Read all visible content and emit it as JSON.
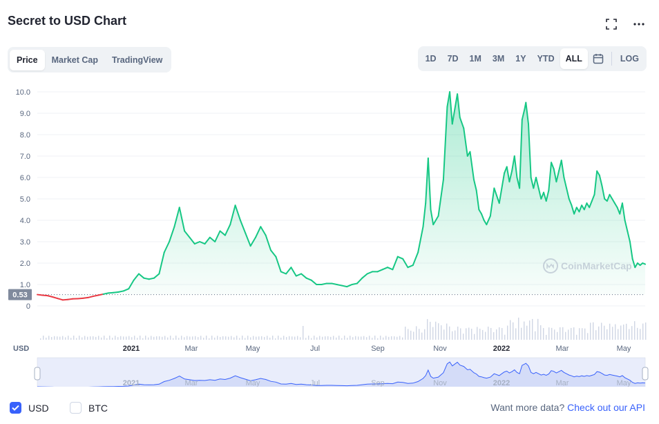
{
  "header": {
    "title": "Secret to USD Chart"
  },
  "tabs_left": [
    "Price",
    "Market Cap",
    "TradingView"
  ],
  "tabs_left_active": "Price",
  "ranges": [
    "1D",
    "7D",
    "1M",
    "3M",
    "1Y",
    "YTD",
    "ALL"
  ],
  "range_active": "ALL",
  "log_label": "LOG",
  "icons": {
    "fullscreen": "fullscreen-icon",
    "more": "more-dots-icon",
    "calendar": "calendar-icon"
  },
  "colors": {
    "up": "#16c784",
    "down": "#ea3943",
    "navigator": "#3861fb",
    "accent": "#3861fb"
  },
  "footer": {
    "usd_label": "USD",
    "btc_label": "BTC",
    "usd_checked": true,
    "btc_checked": false,
    "more_text": "Want more data?",
    "more_link": "Check out our API"
  },
  "chart_data": {
    "type": "area",
    "title": "Secret to USD Chart",
    "ylabel": "USD",
    "ylim": [
      0,
      10
    ],
    "y_ticks": [
      "10.0",
      "9.0",
      "8.0",
      "7.0",
      "6.0",
      "5.0",
      "4.0",
      "3.0",
      "2.0",
      "1.0",
      "0"
    ],
    "x_ticks": [
      "2021",
      "Mar",
      "May",
      "Jul",
      "Sep",
      "Nov",
      "2022",
      "Mar",
      "May"
    ],
    "bold_x_ticks": [
      "2021",
      "2022"
    ],
    "reference_line": {
      "value": 0.53,
      "label": "0.53"
    },
    "watermark": "CoinMarketCap",
    "series": [
      {
        "values": [
          [
            0,
            0.53
          ],
          [
            4,
            0.5
          ],
          [
            8,
            0.48
          ],
          [
            12,
            0.42
          ],
          [
            16,
            0.35
          ],
          [
            20,
            0.28
          ],
          [
            24,
            0.3
          ],
          [
            28,
            0.33
          ],
          [
            32,
            0.34
          ],
          [
            36,
            0.36
          ],
          [
            40,
            0.39
          ],
          [
            44,
            0.45
          ],
          [
            48,
            0.5
          ],
          [
            52,
            0.55
          ],
          [
            56,
            0.6
          ],
          [
            60,
            0.62
          ],
          [
            64,
            0.65
          ],
          [
            68,
            0.7
          ],
          [
            72,
            0.8
          ],
          [
            76,
            1.2
          ],
          [
            80,
            1.5
          ],
          [
            84,
            1.3
          ],
          [
            88,
            1.25
          ],
          [
            92,
            1.3
          ],
          [
            96,
            1.5
          ],
          [
            100,
            2.5
          ],
          [
            104,
            3.0
          ],
          [
            108,
            3.7
          ],
          [
            112,
            4.6
          ],
          [
            116,
            3.5
          ],
          [
            120,
            3.2
          ],
          [
            124,
            2.9
          ],
          [
            128,
            3.0
          ],
          [
            132,
            2.9
          ],
          [
            136,
            3.2
          ],
          [
            140,
            3.0
          ],
          [
            144,
            3.5
          ],
          [
            148,
            3.3
          ],
          [
            152,
            3.8
          ],
          [
            156,
            4.7
          ],
          [
            160,
            4.0
          ],
          [
            164,
            3.4
          ],
          [
            168,
            2.8
          ],
          [
            172,
            3.2
          ],
          [
            176,
            3.7
          ],
          [
            180,
            3.3
          ],
          [
            184,
            2.6
          ],
          [
            188,
            2.3
          ],
          [
            192,
            1.6
          ],
          [
            196,
            1.5
          ],
          [
            200,
            1.8
          ],
          [
            204,
            1.4
          ],
          [
            208,
            1.5
          ],
          [
            212,
            1.3
          ],
          [
            216,
            1.2
          ],
          [
            220,
            1.0
          ],
          [
            224,
            1.0
          ],
          [
            228,
            1.05
          ],
          [
            232,
            1.05
          ],
          [
            236,
            1.0
          ],
          [
            240,
            0.95
          ],
          [
            244,
            0.9
          ],
          [
            248,
            1.0
          ],
          [
            252,
            1.05
          ],
          [
            256,
            1.3
          ],
          [
            260,
            1.5
          ],
          [
            264,
            1.6
          ],
          [
            268,
            1.6
          ],
          [
            272,
            1.7
          ],
          [
            276,
            1.8
          ],
          [
            280,
            1.7
          ],
          [
            284,
            2.3
          ],
          [
            288,
            2.2
          ],
          [
            292,
            1.8
          ],
          [
            296,
            1.9
          ],
          [
            300,
            2.5
          ],
          [
            304,
            3.7
          ],
          [
            306,
            4.8
          ],
          [
            308,
            6.9
          ],
          [
            310,
            4.5
          ],
          [
            312,
            3.8
          ],
          [
            316,
            4.2
          ],
          [
            320,
            5.9
          ],
          [
            323,
            9.3
          ],
          [
            325,
            10.0
          ],
          [
            327,
            8.5
          ],
          [
            329,
            9.2
          ],
          [
            331,
            9.9
          ],
          [
            333,
            8.8
          ],
          [
            336,
            8.3
          ],
          [
            339,
            7.0
          ],
          [
            341,
            7.2
          ],
          [
            344,
            5.9
          ],
          [
            346,
            5.4
          ],
          [
            348,
            4.5
          ],
          [
            350,
            4.3
          ],
          [
            352,
            4.0
          ],
          [
            354,
            3.8
          ],
          [
            357,
            4.2
          ],
          [
            360,
            5.5
          ],
          [
            364,
            4.8
          ],
          [
            366,
            5.5
          ],
          [
            368,
            6.2
          ],
          [
            370,
            6.5
          ],
          [
            372,
            5.8
          ],
          [
            374,
            6.3
          ],
          [
            376,
            7.0
          ],
          [
            378,
            6.0
          ],
          [
            380,
            5.5
          ],
          [
            382,
            8.7
          ],
          [
            384,
            9.2
          ],
          [
            385,
            9.5
          ],
          [
            387,
            8.5
          ],
          [
            389,
            6.0
          ],
          [
            391,
            5.5
          ],
          [
            393,
            6.0
          ],
          [
            395,
            5.5
          ],
          [
            397,
            5.0
          ],
          [
            399,
            5.3
          ],
          [
            401,
            4.9
          ],
          [
            403,
            5.4
          ],
          [
            405,
            6.7
          ],
          [
            407,
            6.4
          ],
          [
            409,
            5.8
          ],
          [
            411,
            6.3
          ],
          [
            413,
            6.8
          ],
          [
            415,
            6.0
          ],
          [
            417,
            5.5
          ],
          [
            419,
            5.0
          ],
          [
            421,
            4.7
          ],
          [
            423,
            4.3
          ],
          [
            425,
            4.6
          ],
          [
            427,
            4.4
          ],
          [
            429,
            4.7
          ],
          [
            431,
            4.5
          ],
          [
            433,
            4.8
          ],
          [
            435,
            4.6
          ],
          [
            437,
            4.9
          ],
          [
            439,
            5.2
          ],
          [
            441,
            6.3
          ],
          [
            443,
            6.1
          ],
          [
            445,
            5.6
          ],
          [
            447,
            5.0
          ],
          [
            449,
            4.9
          ],
          [
            451,
            5.2
          ],
          [
            453,
            5.0
          ],
          [
            455,
            4.8
          ],
          [
            457,
            4.6
          ],
          [
            459,
            4.3
          ],
          [
            461,
            4.8
          ],
          [
            463,
            4.0
          ],
          [
            465,
            3.5
          ],
          [
            467,
            3.0
          ],
          [
            469,
            2.2
          ],
          [
            471,
            1.8
          ],
          [
            473,
            2.0
          ],
          [
            475,
            1.9
          ],
          [
            477,
            2.0
          ],
          [
            479,
            1.95
          ]
        ]
      }
    ],
    "navigator_x_ticks": [
      "2021",
      "Mar",
      "May",
      "Jul",
      "Sep",
      "Nov",
      "2022",
      "Mar",
      "May"
    ]
  }
}
